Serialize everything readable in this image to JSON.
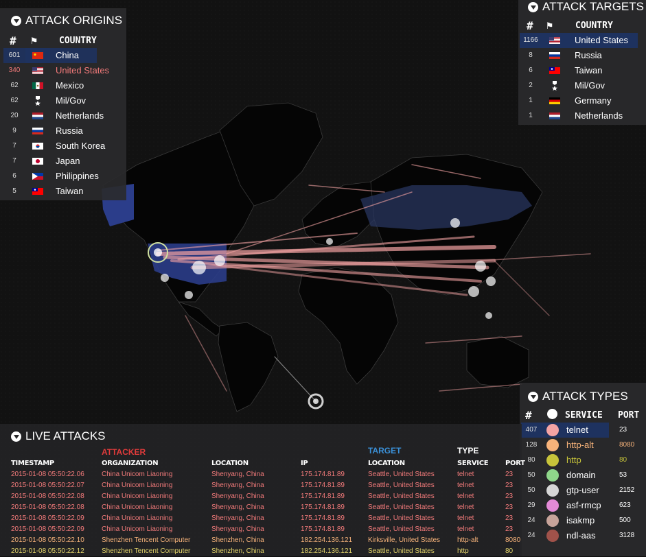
{
  "colors": {
    "attack_line": "#f4a3a3",
    "highlight_row": "#1e325f",
    "attacker_label": "#e03b3b",
    "target_label": "#3a8fd6",
    "map_land": "#050505",
    "map_us": "#2b3d8a"
  },
  "origins": {
    "title": "ATTACK ORIGINS",
    "col_num": "#",
    "col_flag": "flag-icon",
    "col_country": "COUNTRY",
    "rows": [
      {
        "count": "601",
        "country": "China",
        "flag": "cn",
        "highlight": true,
        "red": false
      },
      {
        "count": "340",
        "country": "United States",
        "flag": "us",
        "highlight": false,
        "red": true
      },
      {
        "count": "62",
        "country": "Mexico",
        "flag": "mx",
        "highlight": false,
        "red": false
      },
      {
        "count": "62",
        "country": "Mil/Gov",
        "flag": "mil",
        "highlight": false,
        "red": false
      },
      {
        "count": "20",
        "country": "Netherlands",
        "flag": "nl",
        "highlight": false,
        "red": false
      },
      {
        "count": "9",
        "country": "Russia",
        "flag": "ru",
        "highlight": false,
        "red": false
      },
      {
        "count": "7",
        "country": "South Korea",
        "flag": "kr",
        "highlight": false,
        "red": false
      },
      {
        "count": "7",
        "country": "Japan",
        "flag": "jp",
        "highlight": false,
        "red": false
      },
      {
        "count": "6",
        "country": "Philippines",
        "flag": "ph",
        "highlight": false,
        "red": false
      },
      {
        "count": "5",
        "country": "Taiwan",
        "flag": "tw",
        "highlight": false,
        "red": false
      }
    ]
  },
  "targets": {
    "title": "ATTACK TARGETS",
    "col_num": "#",
    "col_country": "COUNTRY",
    "rows": [
      {
        "count": "1166",
        "country": "United States",
        "flag": "us",
        "highlight": true
      },
      {
        "count": "8",
        "country": "Russia",
        "flag": "ru",
        "highlight": false
      },
      {
        "count": "6",
        "country": "Taiwan",
        "flag": "tw",
        "highlight": false
      },
      {
        "count": "2",
        "country": "Mil/Gov",
        "flag": "mil",
        "highlight": false
      },
      {
        "count": "1",
        "country": "Germany",
        "flag": "de",
        "highlight": false
      },
      {
        "count": "1",
        "country": "Netherlands",
        "flag": "nl",
        "highlight": false
      }
    ]
  },
  "types": {
    "title": "ATTACK TYPES",
    "col_num": "#",
    "col_service": "SERVICE",
    "col_port": "PORT",
    "rows": [
      {
        "count": "407",
        "service": "telnet",
        "port": "23",
        "color": "#f4a3a3",
        "highlight": true,
        "text_color": "#ffffff"
      },
      {
        "count": "128",
        "service": "http-alt",
        "port": "8080",
        "color": "#f7b37a",
        "highlight": false,
        "text_color": "#f7b37a"
      },
      {
        "count": "80",
        "service": "http",
        "port": "80",
        "color": "#c7c43a",
        "highlight": false,
        "text_color": "#c7c43a"
      },
      {
        "count": "50",
        "service": "domain",
        "port": "53",
        "color": "#8fd68a",
        "highlight": false,
        "text_color": "#ffffff"
      },
      {
        "count": "50",
        "service": "gtp-user",
        "port": "2152",
        "color": "#d6d6d6",
        "highlight": false,
        "text_color": "#ffffff"
      },
      {
        "count": "29",
        "service": "asf-rmcp",
        "port": "623",
        "color": "#e38ad6",
        "highlight": false,
        "text_color": "#ffffff"
      },
      {
        "count": "24",
        "service": "isakmp",
        "port": "500",
        "color": "#c7a39a",
        "highlight": false,
        "text_color": "#ffffff"
      },
      {
        "count": "24",
        "service": "ndl-aas",
        "port": "3128",
        "color": "#a0524a",
        "highlight": false,
        "text_color": "#ffffff"
      }
    ]
  },
  "live": {
    "title": "LIVE ATTACKS",
    "attacker_label": "ATTACKER",
    "target_label": "TARGET",
    "type_label": "TYPE",
    "headers": {
      "timestamp": "TIMESTAMP",
      "organization": "ORGANIZATION",
      "location": "LOCATION",
      "ip": "IP",
      "target_location": "LOCATION",
      "service": "SERVICE",
      "port": "PORT"
    },
    "rows": [
      {
        "timestamp": "2015-01-08 05:50:22.06",
        "organization": "China Unicom Liaoning",
        "location": "Shenyang, China",
        "ip": "175.174.81.89",
        "target_location": "Seattle, United States",
        "service": "telnet",
        "port": "23",
        "style": "red"
      },
      {
        "timestamp": "2015-01-08 05:50:22.07",
        "organization": "China Unicom Liaoning",
        "location": "Shenyang, China",
        "ip": "175.174.81.89",
        "target_location": "Seattle, United States",
        "service": "telnet",
        "port": "23",
        "style": "red"
      },
      {
        "timestamp": "2015-01-08 05:50:22.08",
        "organization": "China Unicom Liaoning",
        "location": "Shenyang, China",
        "ip": "175.174.81.89",
        "target_location": "Seattle, United States",
        "service": "telnet",
        "port": "23",
        "style": "red"
      },
      {
        "timestamp": "2015-01-08 05:50:22.08",
        "organization": "China Unicom Liaoning",
        "location": "Shenyang, China",
        "ip": "175.174.81.89",
        "target_location": "Seattle, United States",
        "service": "telnet",
        "port": "23",
        "style": "red"
      },
      {
        "timestamp": "2015-01-08 05:50:22.09",
        "organization": "China Unicom Liaoning",
        "location": "Shenyang, China",
        "ip": "175.174.81.89",
        "target_location": "Seattle, United States",
        "service": "telnet",
        "port": "23",
        "style": "red"
      },
      {
        "timestamp": "2015-01-08 05:50:22.09",
        "organization": "China Unicom Liaoning",
        "location": "Shenyang, China",
        "ip": "175.174.81.89",
        "target_location": "Seattle, United States",
        "service": "telnet",
        "port": "23",
        "style": "red"
      },
      {
        "timestamp": "2015-01-08 05:50:22.10",
        "organization": "Shenzhen Tencent Computer",
        "location": "Shenzhen, China",
        "ip": "182.254.136.121",
        "target_location": "Kirksville, United States",
        "service": "http-alt",
        "port": "8080",
        "style": "orange"
      },
      {
        "timestamp": "2015-01-08 05:50:22.12",
        "organization": "Shenzhen Tencent Computer",
        "location": "Shenzhen, China",
        "ip": "182.254.136.121",
        "target_location": "Seattle, United States",
        "service": "http",
        "port": "80",
        "style": "yellow"
      }
    ]
  }
}
